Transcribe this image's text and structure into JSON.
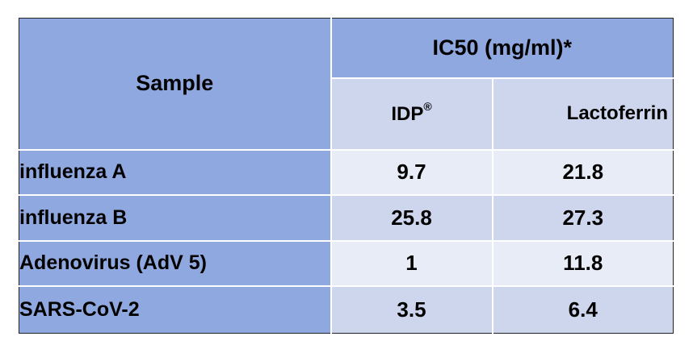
{
  "table": {
    "sample_header": "Sample",
    "group_header": "IC50 (mg/ml)*",
    "columns": {
      "idp": "IDP",
      "idp_mark": "®",
      "lactoferrin": "Lactoferrin"
    },
    "rows": [
      {
        "sample": "influenza  A",
        "idp": "9.7",
        "lactoferrin": "21.8"
      },
      {
        "sample": "influenza B",
        "idp": "25.8",
        "lactoferrin": "27.3"
      },
      {
        "sample": "Adenovirus (AdV 5)",
        "idp": "1",
        "lactoferrin": "11.8"
      },
      {
        "sample": "SARS-CoV-2",
        "idp": "3.5",
        "lactoferrin": "6.4"
      }
    ]
  },
  "colors": {
    "header_blue": "#8fa8df",
    "light_band": "#e8ecf6",
    "mid_band": "#ced6ed"
  }
}
